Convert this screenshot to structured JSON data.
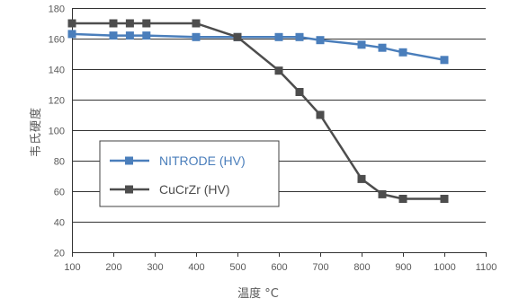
{
  "chart_data": {
    "type": "line",
    "title": "",
    "xlabel": "温度 °C",
    "ylabel": "韦氏硬度",
    "xlim": [
      100,
      1100
    ],
    "ylim": [
      20,
      180
    ],
    "x_ticks": [
      100,
      200,
      300,
      400,
      500,
      600,
      700,
      800,
      900,
      1000,
      1100
    ],
    "y_ticks": [
      20,
      40,
      60,
      80,
      100,
      120,
      140,
      160,
      180
    ],
    "grid": "horizontal",
    "legend_position": "center-left",
    "series": [
      {
        "name": "NITRODE (HV)",
        "color": "#4A7EBB",
        "marker": "square",
        "x": [
          100,
          200,
          240,
          280,
          400,
          500,
          600,
          650,
          700,
          800,
          850,
          900,
          1000
        ],
        "y": [
          163,
          162,
          162,
          162,
          161,
          161,
          161,
          161,
          159,
          156,
          154,
          151,
          146
        ]
      },
      {
        "name": "CuCrZr (HV)",
        "color": "#4D4D4D",
        "marker": "square",
        "x": [
          100,
          200,
          240,
          280,
          400,
          500,
          600,
          650,
          700,
          800,
          850,
          900,
          1000
        ],
        "y": [
          170,
          170,
          170,
          170,
          170,
          161,
          139,
          125,
          110,
          68,
          58,
          55,
          55
        ]
      }
    ]
  }
}
